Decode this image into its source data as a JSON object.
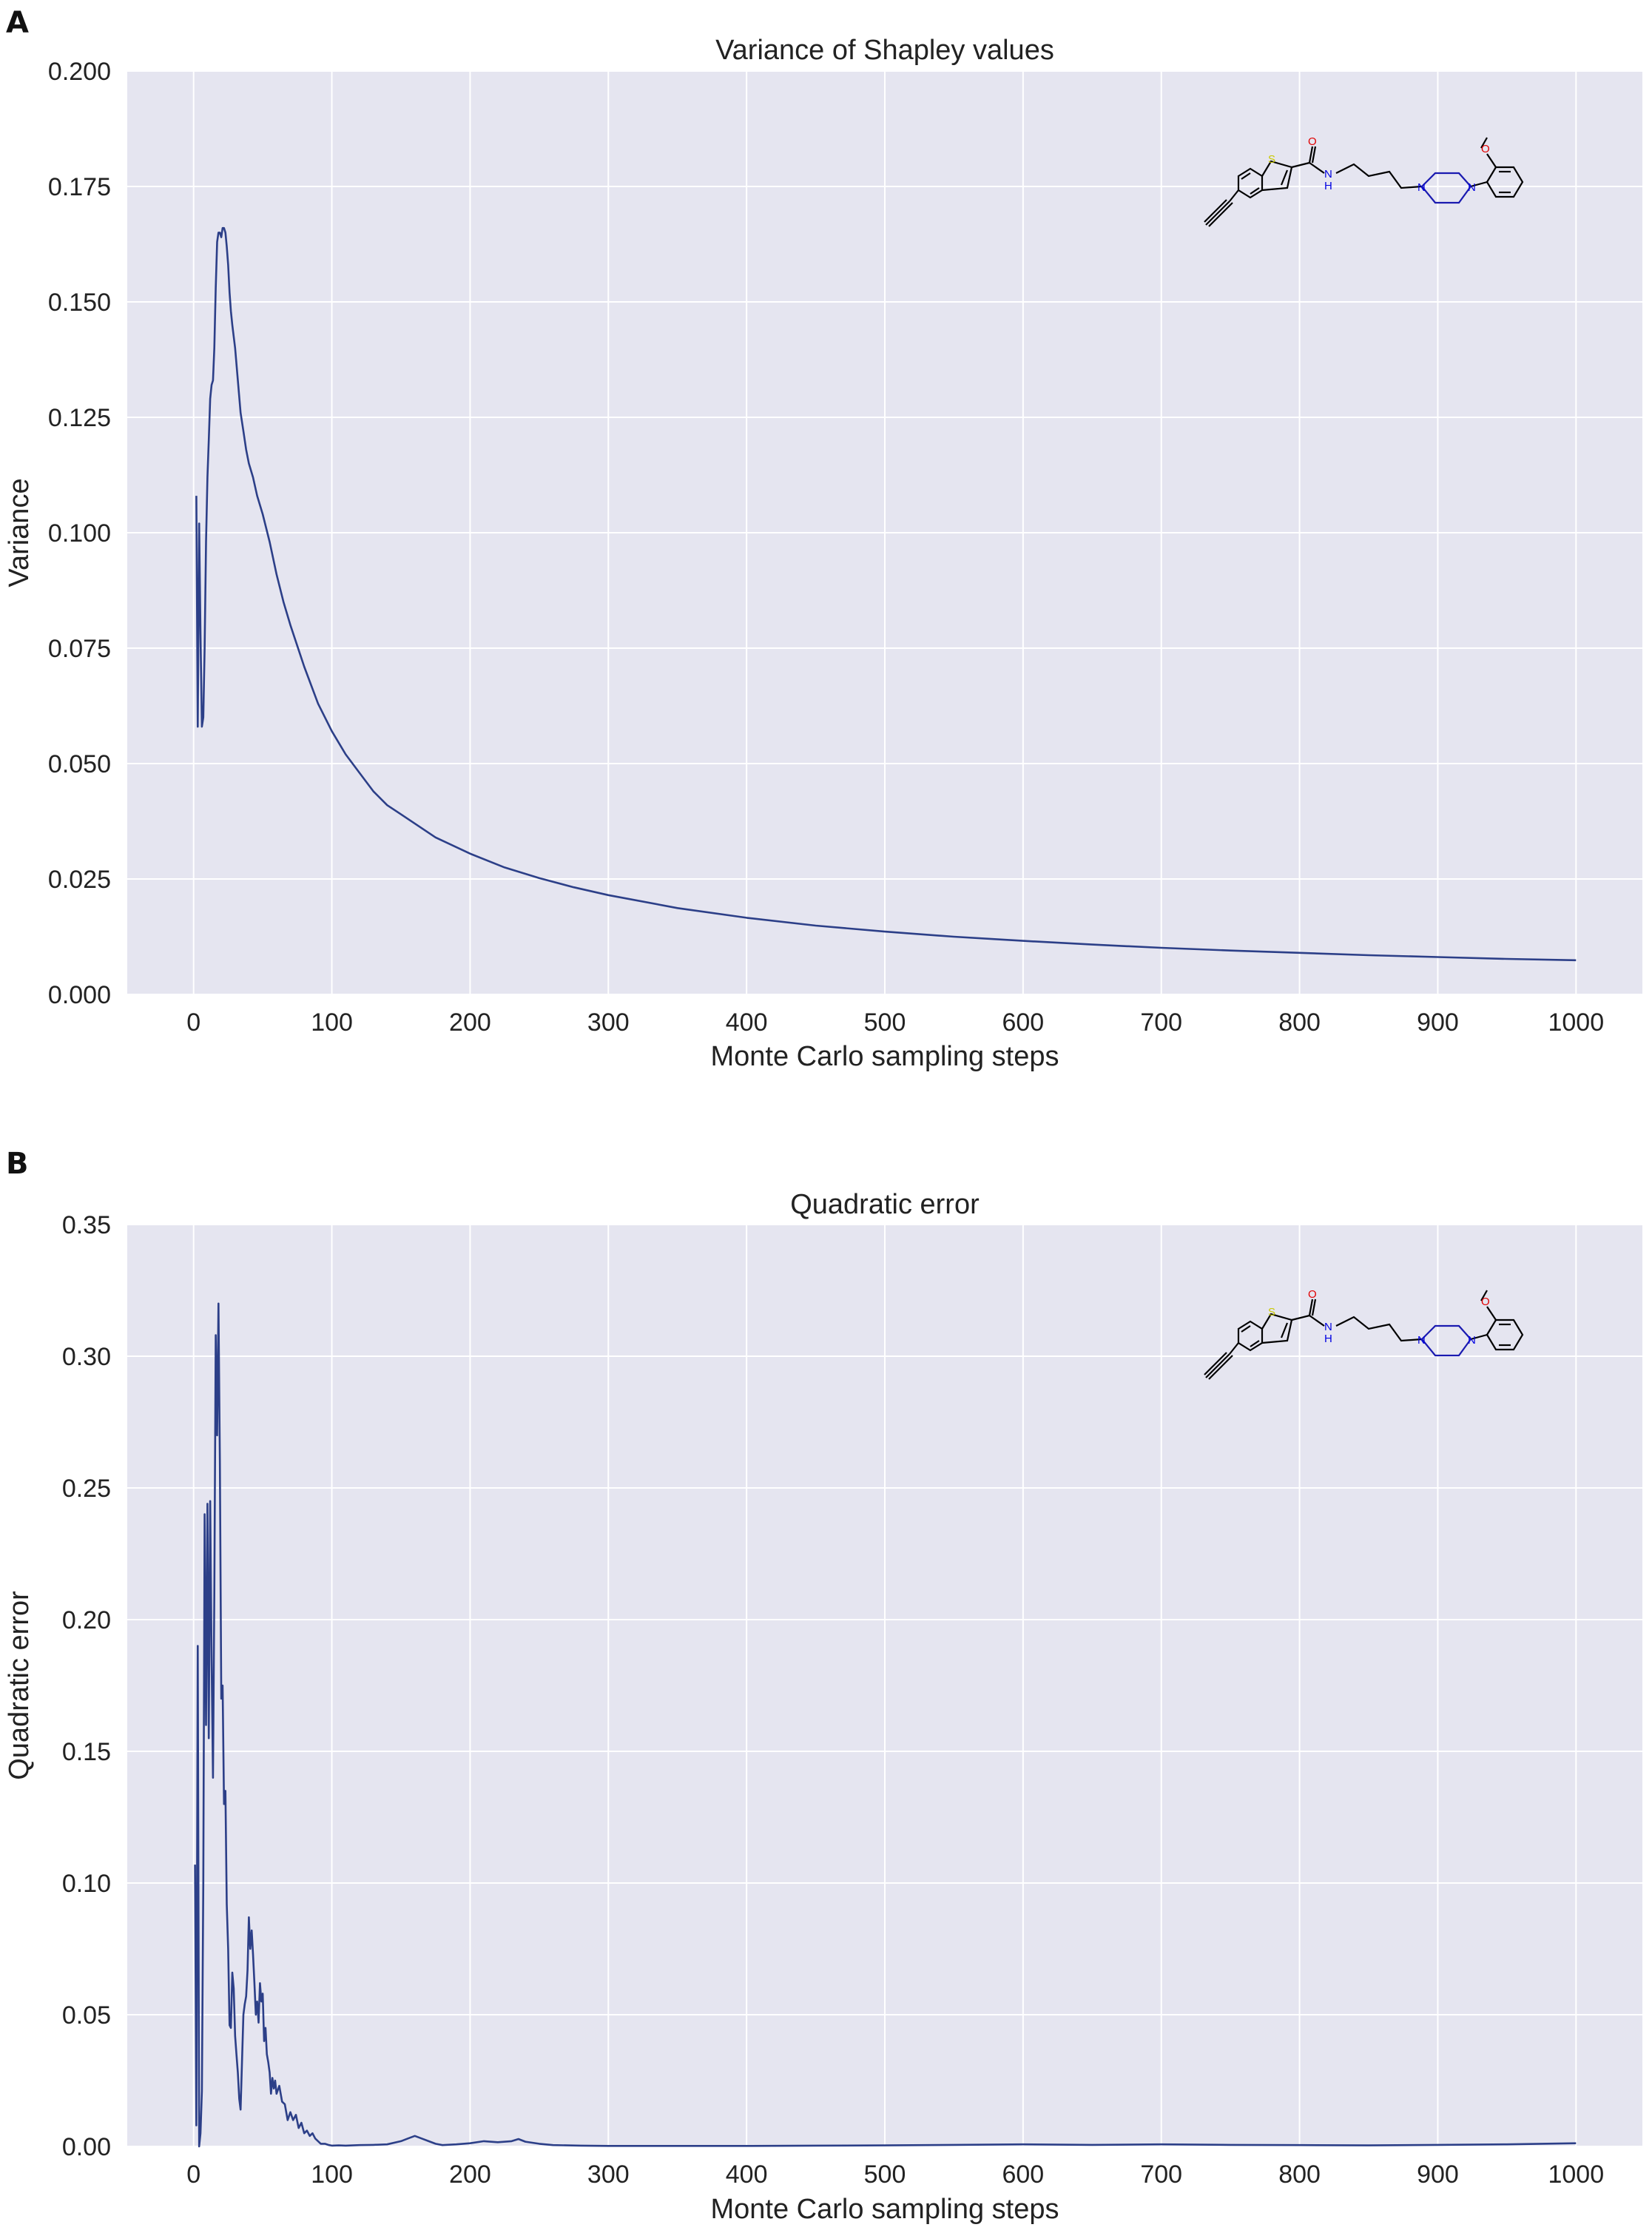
{
  "panels": [
    {
      "letter": "A"
    },
    {
      "letter": "B"
    }
  ],
  "molecule": {
    "atoms": {
      "S": "S",
      "O": "O",
      "N": "N",
      "NH": "H"
    },
    "colors": {
      "S": "#c8c800",
      "O": "#e00000",
      "N": "#0000e0",
      "bond": "#000000"
    }
  },
  "colors": {
    "line": "#2c3f88",
    "background": "#e5e5f0",
    "grid": "#ffffff"
  },
  "chart_data": [
    {
      "type": "line",
      "title": "Variance of Shapley values",
      "xlabel": "Monte Carlo sampling steps",
      "ylabel": "Variance",
      "xlim": [
        -48,
        1048
      ],
      "ylim": [
        0,
        0.2
      ],
      "xticks": [
        0,
        100,
        200,
        300,
        400,
        500,
        600,
        700,
        800,
        900,
        1000
      ],
      "xtick_labels": [
        "0",
        "100",
        "200",
        "300",
        "400",
        "500",
        "600",
        "700",
        "800",
        "900",
        "1000"
      ],
      "yticks": [
        0,
        0.025,
        0.05,
        0.075,
        0.1,
        0.125,
        0.15,
        0.175,
        0.2
      ],
      "ytick_labels": [
        "0.000",
        "0.025",
        "0.050",
        "0.075",
        "0.100",
        "0.125",
        "0.150",
        "0.175",
        "0.200"
      ],
      "series": [
        {
          "name": "variance",
          "x": [
            2,
            3,
            4,
            5,
            6,
            7,
            8,
            9,
            10,
            11,
            12,
            13,
            14,
            15,
            16,
            17,
            18,
            19,
            20,
            21,
            22,
            23,
            24,
            25,
            26,
            27,
            28,
            30,
            32,
            34,
            36,
            38,
            40,
            43,
            46,
            50,
            55,
            60,
            65,
            70,
            80,
            90,
            100,
            110,
            120,
            130,
            140,
            150,
            160,
            175,
            200,
            225,
            250,
            275,
            300,
            350,
            400,
            450,
            500,
            550,
            600,
            650,
            700,
            750,
            800,
            850,
            900,
            950,
            1000
          ],
          "y": [
            0.108,
            0.058,
            0.102,
            0.078,
            0.058,
            0.06,
            0.075,
            0.098,
            0.112,
            0.12,
            0.129,
            0.132,
            0.133,
            0.14,
            0.153,
            0.163,
            0.165,
            0.165,
            0.164,
            0.166,
            0.166,
            0.165,
            0.162,
            0.158,
            0.152,
            0.148,
            0.145,
            0.14,
            0.133,
            0.126,
            0.122,
            0.118,
            0.115,
            0.112,
            0.108,
            0.104,
            0.098,
            0.091,
            0.085,
            0.08,
            0.071,
            0.063,
            0.057,
            0.052,
            0.048,
            0.044,
            0.041,
            0.039,
            0.037,
            0.034,
            0.0305,
            0.0275,
            0.0252,
            0.0232,
            0.0215,
            0.0187,
            0.0166,
            0.0149,
            0.0136,
            0.0125,
            0.0116,
            0.0108,
            0.0101,
            0.0095,
            0.009,
            0.0085,
            0.0081,
            0.0077,
            0.0074
          ]
        }
      ]
    },
    {
      "type": "line",
      "title": "Quadratic error",
      "xlabel": "Monte Carlo sampling steps",
      "ylabel": "Quadratic error",
      "xlim": [
        -48,
        1048
      ],
      "ylim": [
        0,
        0.35
      ],
      "xticks": [
        0,
        100,
        200,
        300,
        400,
        500,
        600,
        700,
        800,
        900,
        1000
      ],
      "xtick_labels": [
        "0",
        "100",
        "200",
        "300",
        "400",
        "500",
        "600",
        "700",
        "800",
        "900",
        "1000"
      ],
      "yticks": [
        0,
        0.05,
        0.1,
        0.15,
        0.2,
        0.25,
        0.3,
        0.35
      ],
      "ytick_labels": [
        "0.00",
        "0.05",
        "0.10",
        "0.15",
        "0.20",
        "0.25",
        "0.30",
        "0.35"
      ],
      "series": [
        {
          "name": "quadratic error",
          "x": [
            1,
            2,
            3,
            4,
            5,
            6,
            7,
            8,
            9,
            10,
            11,
            12,
            13,
            14,
            15,
            16,
            17,
            18,
            19,
            20,
            21,
            22,
            23,
            24,
            25,
            26,
            27,
            28,
            29,
            30,
            31,
            32,
            33,
            34,
            35,
            36,
            37,
            38,
            39,
            40,
            41,
            42,
            43,
            44,
            45,
            46,
            47,
            48,
            49,
            50,
            51,
            52,
            53,
            54,
            55,
            56,
            57,
            58,
            59,
            60,
            62,
            64,
            66,
            68,
            70,
            72,
            74,
            76,
            78,
            80,
            82,
            84,
            86,
            88,
            90,
            92,
            95,
            98,
            100,
            105,
            110,
            120,
            130,
            140,
            150,
            155,
            160,
            165,
            170,
            175,
            180,
            190,
            200,
            210,
            220,
            230,
            235,
            240,
            250,
            260,
            280,
            300,
            350,
            400,
            450,
            500,
            550,
            600,
            650,
            700,
            750,
            800,
            850,
            900,
            950,
            1000
          ],
          "y": [
            0.107,
            0.008,
            0.19,
            0.0,
            0.005,
            0.021,
            0.1,
            0.24,
            0.16,
            0.244,
            0.155,
            0.245,
            0.185,
            0.14,
            0.21,
            0.308,
            0.27,
            0.32,
            0.26,
            0.17,
            0.175,
            0.13,
            0.135,
            0.092,
            0.075,
            0.046,
            0.045,
            0.066,
            0.06,
            0.042,
            0.035,
            0.028,
            0.018,
            0.014,
            0.032,
            0.05,
            0.054,
            0.057,
            0.067,
            0.087,
            0.075,
            0.082,
            0.073,
            0.062,
            0.05,
            0.055,
            0.047,
            0.062,
            0.055,
            0.058,
            0.04,
            0.045,
            0.035,
            0.032,
            0.028,
            0.02,
            0.026,
            0.022,
            0.025,
            0.02,
            0.023,
            0.017,
            0.016,
            0.01,
            0.013,
            0.01,
            0.012,
            0.007,
            0.009,
            0.005,
            0.006,
            0.004,
            0.005,
            0.003,
            0.002,
            0.001,
            0.001,
            0.0005,
            0.0003,
            0.0004,
            0.0003,
            0.0005,
            0.0006,
            0.0008,
            0.002,
            0.003,
            0.004,
            0.003,
            0.002,
            0.001,
            0.0005,
            0.0008,
            0.0012,
            0.002,
            0.0016,
            0.002,
            0.0028,
            0.0018,
            0.001,
            0.0005,
            0.0003,
            0.0002,
            0.0002,
            0.0002,
            0.0003,
            0.0004,
            0.0006,
            0.0008,
            0.0006,
            0.0008,
            0.0006,
            0.0005,
            0.0004,
            0.0006,
            0.0008,
            0.0012
          ]
        }
      ]
    }
  ]
}
